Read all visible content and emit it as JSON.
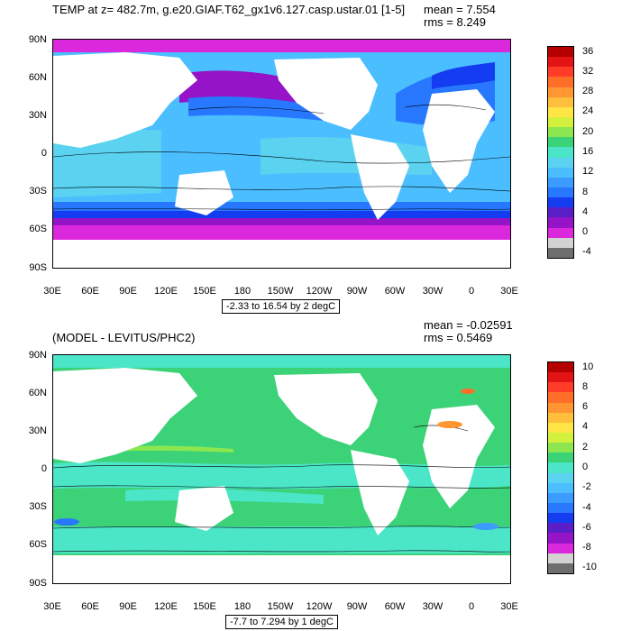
{
  "top": {
    "title": "TEMP at z= 482.7m, g.e20.GIAF.T62_gx1v6.127.casp.ustar.01 [1-5]",
    "mean": "mean = 7.554",
    "rms": "rms = 8.249",
    "range_label": "-2.33 to 16.54 by 2 degC",
    "colorbar_labels": [
      "36",
      "32",
      "28",
      "24",
      "20",
      "16",
      "12",
      "8",
      "4",
      "0",
      "-4"
    ],
    "colorbar_colors": [
      "#b40000",
      "#e41414",
      "#ff3c28",
      "#ff6e28",
      "#ff9632",
      "#ffbe3c",
      "#ffe646",
      "#d2f03c",
      "#8ce650",
      "#3cd278",
      "#4be6c8",
      "#5ad2f0",
      "#4bbeff",
      "#3c9bff",
      "#2878ff",
      "#143cf0",
      "#5a1ec8",
      "#9614c8",
      "#dc28dc",
      "#d2d2d2",
      "#6e6e6e"
    ]
  },
  "bottom": {
    "title": "(MODEL - LEVITUS/PHC2)",
    "mean": "mean = -0.02591",
    "rms": "rms = 0.5469",
    "range_label": "-7.7 to 7.294 by 1 degC",
    "colorbar_labels": [
      "10",
      "8",
      "6",
      "4",
      "2",
      "0",
      "-2",
      "-4",
      "-6",
      "-8",
      "-10"
    ],
    "colorbar_colors": [
      "#b40000",
      "#e41414",
      "#ff3c28",
      "#ff6e28",
      "#ff9632",
      "#ffbe3c",
      "#ffe646",
      "#d2f03c",
      "#8ce650",
      "#3cd278",
      "#4be6c8",
      "#5ad2f0",
      "#4bbeff",
      "#3c9bff",
      "#2878ff",
      "#143cf0",
      "#5a1ec8",
      "#9614c8",
      "#dc28dc",
      "#d2d2d2",
      "#6e6e6e"
    ]
  },
  "lat_labels": [
    "90N",
    "60N",
    "30N",
    "0",
    "30S",
    "60S",
    "90S"
  ],
  "lon_labels": [
    "30E",
    "60E",
    "90E",
    "120E",
    "150E",
    "180",
    "150W",
    "120W",
    "90W",
    "60W",
    "30W",
    "0",
    "30E"
  ],
  "colors": {
    "land": "#ffffff",
    "top_ocean_main": "#4bbeff",
    "top_ocean_deep": "#2878ff",
    "top_ocean_light": "#5ad2f0",
    "top_polar": "#dc28dc",
    "top_purple": "#9614c8",
    "top_blue": "#143cf0",
    "bot_ocean_main": "#3cd278",
    "bot_ocean_cyan": "#4be6c8",
    "bot_light_green": "#8ce650"
  }
}
